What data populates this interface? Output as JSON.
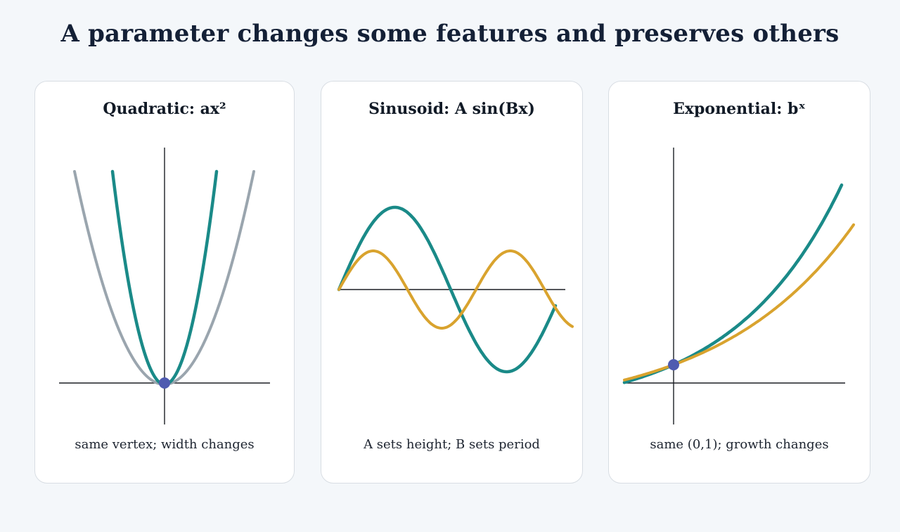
{
  "title": "A parameter changes some features and preserves others",
  "panels": [
    {
      "title": "Quadratic: ax²",
      "caption": "same vertex; width changes",
      "curves": [
        {
          "function": "a*x^2",
          "role": "reference",
          "color": "#9aa5ae"
        },
        {
          "function": "a*x^2",
          "role": "larger a",
          "color": "#1a8a88"
        }
      ],
      "marker": {
        "label_shown": false,
        "color": "#4f5bb0"
      }
    },
    {
      "title": "Sinusoid: A sin(Bx)",
      "caption": "A sets height; B sets period",
      "curves": [
        {
          "function": "A*sin(B*x)",
          "role": "larger A",
          "color": "#1a8a88"
        },
        {
          "function": "A*sin(B*x)",
          "role": "larger B",
          "color": "#d9a32e"
        }
      ]
    },
    {
      "title": "Exponential: bˣ",
      "caption": "same (0,1); growth changes",
      "curves": [
        {
          "function": "b^x",
          "role": "larger b",
          "color": "#1a8a88"
        },
        {
          "function": "b^x",
          "role": "smaller b",
          "color": "#d9a32e"
        }
      ],
      "marker": {
        "label_shown": false,
        "color": "#4f5bb0"
      }
    }
  ],
  "colors": {
    "teal": "#1a8a88",
    "gray": "#9aa5ae",
    "gold": "#d9a32e",
    "point": "#4f5bb0",
    "axis": "#1b1f24"
  }
}
